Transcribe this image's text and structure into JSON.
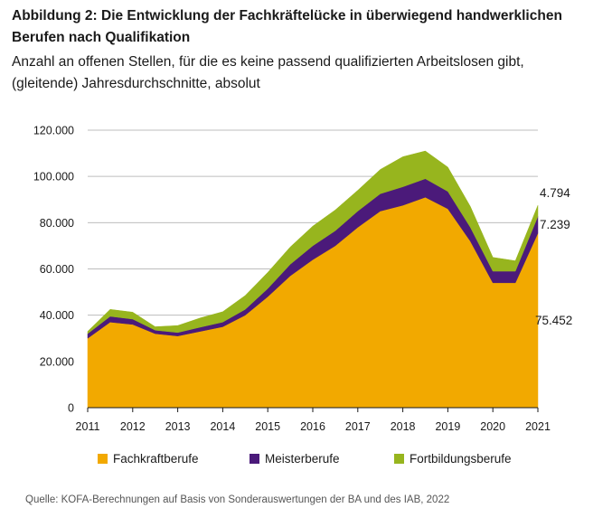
{
  "title_line1": "Abbildung 2: Die Entwicklung der Fachkräftelücke in überwiegend handwerklichen",
  "title_line2": "Berufen nach Qualifikation",
  "subtitle_line1": "Anzahl an offenen Stellen, für die es keine passend qualifizierten Arbeitslosen gibt,",
  "subtitle_line2": "(gleitende) Jahresdurchschnitte, absolut",
  "source": "Quelle: KOFA-Berechnungen auf Basis von Sonderauswertungen der BA und des IAB, 2022",
  "chart_data": {
    "type": "area",
    "stacked": true,
    "x": [
      2011.0,
      2011.5,
      2012.0,
      2012.5,
      2013.0,
      2013.5,
      2014.0,
      2014.5,
      2015.0,
      2015.5,
      2016.0,
      2016.5,
      2017.0,
      2017.5,
      2018.0,
      2018.5,
      2019.0,
      2019.5,
      2020.0,
      2020.5,
      2021.0
    ],
    "x_ticks": [
      "2011",
      "2012",
      "2013",
      "2014",
      "2015",
      "2016",
      "2017",
      "2018",
      "2019",
      "2020",
      "2021"
    ],
    "ylim": [
      0,
      120000
    ],
    "y_ticks": [
      "0",
      "20.000",
      "40.000",
      "60.000",
      "80.000",
      "100.000",
      "120.000"
    ],
    "grid": true,
    "legend_position": "bottom",
    "series": [
      {
        "name": "Fachkraftberufe",
        "color": "#F2A900",
        "values": [
          30000,
          37000,
          36000,
          32000,
          31000,
          33000,
          35000,
          40000,
          48000,
          57000,
          64000,
          70000,
          78000,
          85000,
          87500,
          91000,
          86000,
          72000,
          54000,
          54000,
          75452
        ]
      },
      {
        "name": "Meisterberufe",
        "color": "#4B1A7A",
        "values": [
          2000,
          2500,
          2300,
          1500,
          1500,
          1800,
          2000,
          2500,
          3500,
          5000,
          6000,
          6500,
          7000,
          7500,
          8000,
          8000,
          7500,
          6000,
          5000,
          5000,
          7239
        ]
      },
      {
        "name": "Fortbildungsberufe",
        "color": "#97B51E",
        "values": [
          1000,
          3000,
          3000,
          1500,
          3000,
          4000,
          4500,
          6000,
          7000,
          7500,
          8500,
          9000,
          9000,
          10500,
          13000,
          12000,
          10500,
          9000,
          6000,
          4500,
          4794
        ]
      }
    ],
    "end_labels": [
      "75.452",
      "7.239",
      "4.794"
    ]
  }
}
